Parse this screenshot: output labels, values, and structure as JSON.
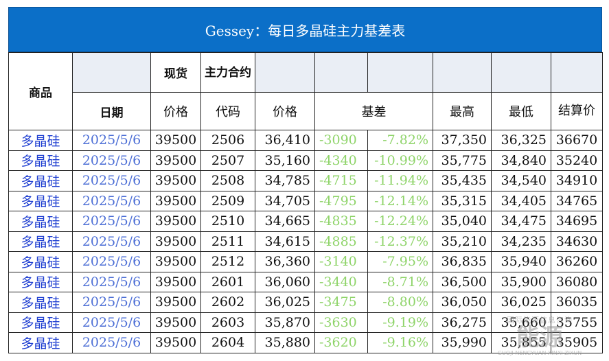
{
  "title": "Gessey：每日多晶硅主力基差表",
  "headers": {
    "product": "商品",
    "date": "日期",
    "spot": "现货",
    "contract": "主力合约",
    "price": "价格",
    "code": "代码",
    "basis": "基差",
    "high": "最高",
    "low": "最低",
    "settle": "结算价"
  },
  "rows": [
    {
      "product": "多晶硅",
      "date": "2025/5/6",
      "spot": "39500",
      "code": "2506",
      "price": "36,410",
      "basis": "-3090",
      "pct": "-7.82%",
      "high": "37,350",
      "low": "36,325",
      "settle": "36670"
    },
    {
      "product": "多晶硅",
      "date": "2025/5/6",
      "spot": "39500",
      "code": "2507",
      "price": "35,160",
      "basis": "-4340",
      "pct": "-10.99%",
      "high": "35,775",
      "low": "34,840",
      "settle": "35240"
    },
    {
      "product": "多晶硅",
      "date": "2025/5/6",
      "spot": "39500",
      "code": "2508",
      "price": "34,785",
      "basis": "-4715",
      "pct": "-11.94%",
      "high": "35,435",
      "low": "34,540",
      "settle": "34910"
    },
    {
      "product": "多晶硅",
      "date": "2025/5/6",
      "spot": "39500",
      "code": "2509",
      "price": "34,705",
      "basis": "-4795",
      "pct": "-12.14%",
      "high": "35,315",
      "low": "34,405",
      "settle": "34765"
    },
    {
      "product": "多晶硅",
      "date": "2025/5/6",
      "spot": "39500",
      "code": "2510",
      "price": "34,665",
      "basis": "-4835",
      "pct": "-12.24%",
      "high": "35,040",
      "low": "34,475",
      "settle": "34695"
    },
    {
      "product": "多晶硅",
      "date": "2025/5/6",
      "spot": "39500",
      "code": "2511",
      "price": "34,615",
      "basis": "-4885",
      "pct": "-12.37%",
      "high": "35,210",
      "low": "34,235",
      "settle": "34630"
    },
    {
      "product": "多晶硅",
      "date": "2025/5/6",
      "spot": "39500",
      "code": "2512",
      "price": "36,360",
      "basis": "-3140",
      "pct": "-7.95%",
      "high": "36,835",
      "low": "35,940",
      "settle": "36260"
    },
    {
      "product": "多晶硅",
      "date": "2025/5/6",
      "spot": "39500",
      "code": "2601",
      "price": "36,060",
      "basis": "-3440",
      "pct": "-8.71%",
      "high": "36,500",
      "low": "35,900",
      "settle": "36080"
    },
    {
      "product": "多晶硅",
      "date": "2025/5/6",
      "spot": "39500",
      "code": "2602",
      "price": "36,025",
      "basis": "-3475",
      "pct": "-8.80%",
      "high": "36,050",
      "low": "36,025",
      "settle": "36035"
    },
    {
      "product": "多晶硅",
      "date": "2025/5/6",
      "spot": "39500",
      "code": "2603",
      "price": "35,870",
      "basis": "-3630",
      "pct": "-9.19%",
      "high": "36,275",
      "low": "35,660",
      "settle": "35755"
    },
    {
      "product": "多晶硅",
      "date": "2025/5/6",
      "spot": "39500",
      "code": "2604",
      "price": "35,880",
      "basis": "-3620",
      "pct": "-9.16%",
      "high": "35,990",
      "low": "35,855",
      "settle": "35905"
    }
  ],
  "watermark": {
    "line1": "国际能源信息咨询",
    "line2": "能源",
    "line3": "GUOJI NENGYUAN XINXI ZIXUN"
  },
  "colors": {
    "title_bg": "#0b6fc8",
    "product_text": "#1f3fd1",
    "date_text": "#4d6fd6",
    "basis_text": "#8fd46a",
    "header_blank_bg": "#eaeef5"
  }
}
